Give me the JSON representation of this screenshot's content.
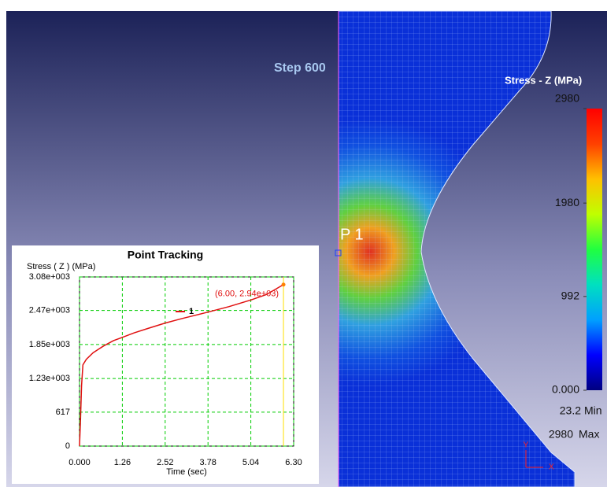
{
  "header": {
    "step": "Step 600",
    "probe": "P 1"
  },
  "colorbar": {
    "title": "Stress - Z (MPa)",
    "range": [
      0,
      2980
    ],
    "ticks": [
      2980,
      1980,
      992,
      {
        "value": 0,
        "label": "0.000"
      }
    ],
    "colors": [
      "#000080",
      "#0000ff",
      "#00a0ff",
      "#00e0c0",
      "#20ff40",
      "#c0ff00",
      "#ffc000",
      "#ff4000",
      "#ff0000"
    ],
    "min": {
      "value": 23.2,
      "label": "Min"
    },
    "max": {
      "value": 2980,
      "label": "Max"
    }
  },
  "triad": {
    "x": "X",
    "y": "Y"
  },
  "chart_data": {
    "type": "line",
    "title": "Point Tracking",
    "y_label": "Stress ( Z )  (MPa)",
    "x_label": "Time (sec)",
    "x": [
      0,
      0.03,
      0.06,
      0.1,
      0.2,
      0.4,
      0.7,
      1.0,
      1.26,
      1.6,
      2.0,
      2.52,
      3.0,
      3.78,
      4.4,
      5.04,
      5.5,
      6.0
    ],
    "series": [
      {
        "name": "1",
        "color": "#e01010",
        "values": [
          0,
          500,
          1100,
          1480,
          1580,
          1700,
          1820,
          1920,
          1980,
          2060,
          2140,
          2240,
          2320,
          2440,
          2540,
          2660,
          2760,
          2940
        ]
      }
    ],
    "xlim": [
      0,
      6.3
    ],
    "ylim": [
      0,
      3080
    ],
    "xticks": [
      {
        "value": 0,
        "label": "0.000"
      },
      1.26,
      2.52,
      3.78,
      5.04,
      {
        "value": 6.3,
        "label": "6.30"
      }
    ],
    "yticks": [
      0,
      617,
      {
        "value": 1230,
        "label": "1.23e+003"
      },
      {
        "value": 1850,
        "label": "1.85e+003"
      },
      {
        "value": 2470,
        "label": "2.47e+003"
      },
      {
        "value": 3080,
        "label": "3.08e+003"
      }
    ],
    "grid": true,
    "grid_color": "#00cc00",
    "marker_x": 6.0,
    "marker_color": "#ffe000",
    "annotations": [
      {
        "text": "(6.00, 2.94e+03)",
        "x": 6.0,
        "y": 2940
      }
    ]
  }
}
